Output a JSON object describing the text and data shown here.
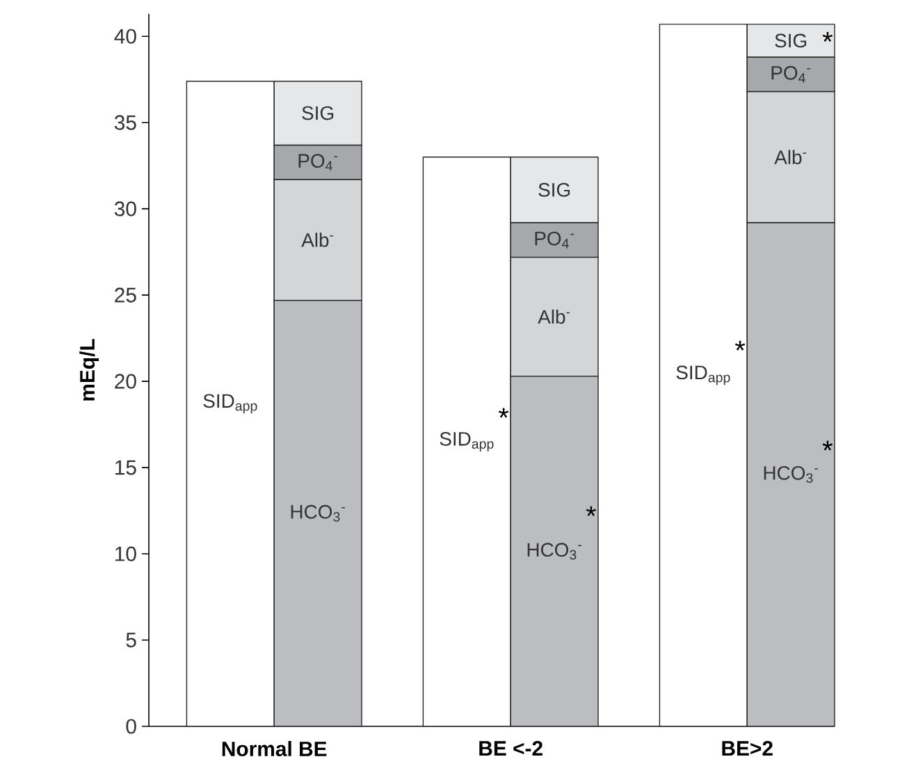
{
  "chart_data": {
    "type": "bar",
    "ylabel": "mEq/L",
    "categories": [
      "Normal BE",
      "BE <-2",
      "BE>2"
    ],
    "ylim": [
      0,
      41.3
    ],
    "yticks": [
      0,
      5,
      10,
      15,
      20,
      25,
      30,
      35,
      40
    ],
    "series": [
      {
        "name": "SID$_{app}$",
        "color": "#ffffff",
        "values": [
          37.4,
          33.0,
          40.7
        ]
      },
      {
        "name": "HCO$_{3}$$^{-}$",
        "color": "#bcbdc1",
        "base": [
          0,
          0,
          0
        ],
        "values": [
          24.7,
          20.3,
          29.2
        ]
      },
      {
        "name": "Alb$^{-}$",
        "color": "#d4d5d7",
        "base": [
          24.7,
          20.3,
          29.2
        ],
        "values": [
          7.0,
          6.9,
          7.6
        ]
      },
      {
        "name": "PO$_{4}$$^{-}$",
        "color": "#a7a8ab",
        "base": [
          31.7,
          27.2,
          36.8
        ],
        "values": [
          2.0,
          2.0,
          2.0
        ]
      },
      {
        "name": "SIG",
        "color": "#e6e7e9",
        "base": [
          33.7,
          29.2,
          38.8
        ],
        "values": [
          3.7,
          3.8,
          1.9
        ]
      }
    ],
    "annotations": [
      {
        "text": "*",
        "x": "BE <-2",
        "y": 17.9
      },
      {
        "text": "*",
        "x": "BE <-2",
        "y": 12.2
      },
      {
        "text": "*",
        "x": "BE>2",
        "y": 21.8
      },
      {
        "text": "*",
        "x": "BE>2",
        "y": 16.0
      },
      {
        "text": "*",
        "x": "BE>2",
        "y": 39.7
      }
    ]
  }
}
